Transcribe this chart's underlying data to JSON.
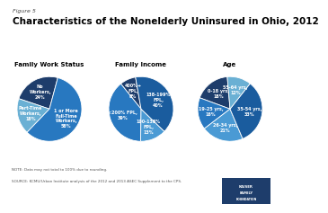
{
  "title": "Characteristics of the Nonelderly Uninsured in Ohio, 2012",
  "figure_label": "Figure 5",
  "chart1_title": "Family Work Status",
  "chart1_labels": [
    "No\nWorkers,\n24%",
    "Part-Time\nWorkers,\n18%",
    "1 or More\nFull-Time\nWorkers,\n58%"
  ],
  "chart1_values": [
    24,
    18,
    58
  ],
  "chart1_colors": [
    "#1e3d6b",
    "#6ab0d4",
    "#2878c0"
  ],
  "chart1_startangle": 75,
  "chart2_title": "Family Income",
  "chart2_labels": [
    "400%+\nFPL,\n8%",
    "<200% FPL,\n39%",
    "100-138%\nFPL,\n13%",
    "138-199%\nFPL,\n40%"
  ],
  "chart2_values": [
    8,
    39,
    13,
    40
  ],
  "chart2_colors": [
    "#1e3d6b",
    "#2878c0",
    "#4a9ad4",
    "#1a5c9e"
  ],
  "chart2_startangle": 100,
  "chart3_title": "Age",
  "chart3_labels": [
    "0-18 yrs,\n18%",
    "19-25 yrs,\n16%",
    "26-34 yrs,\n21%",
    "35-54 yrs,\n33%",
    "55-64 yrs,\n12%"
  ],
  "chart3_values": [
    18,
    16,
    21,
    33,
    12
  ],
  "chart3_colors": [
    "#1e3d6b",
    "#2878c0",
    "#4a9ad4",
    "#1a5c9e",
    "#6ab0d4"
  ],
  "chart3_startangle": 95,
  "note": "NOTE: Data may not total to 100% due to rounding.",
  "source": "SOURCE: KCMU/Urban Institute analysis of the 2012 and 2013 ASEC Supplement to the CPS.",
  "bg_color": "#ffffff"
}
